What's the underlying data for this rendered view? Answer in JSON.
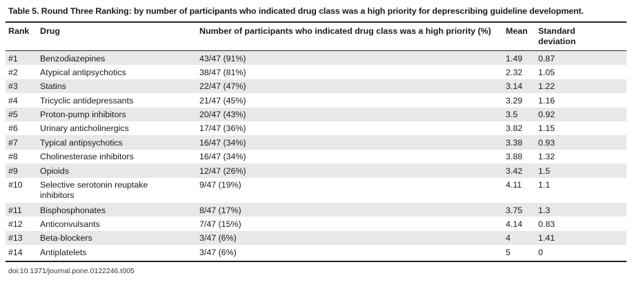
{
  "caption": "Table 5.  Round Three Ranking: by number of participants who indicated drug class was a high priority for deprescribing guideline development.",
  "headers": {
    "rank": "Rank",
    "drug": "Drug",
    "number": "Number of participants who indicated drug class was a high priority (%)",
    "mean": "Mean",
    "sd": "Standard deviation"
  },
  "rows": [
    {
      "rank": "#1",
      "drug": "Benzodiazepines",
      "number": "43/47 (91%)",
      "mean": "1.49",
      "sd": "0.87"
    },
    {
      "rank": "#2",
      "drug": "Atypical antipsychotics",
      "number": "38/47 (81%)",
      "mean": "2.32",
      "sd": "1.05"
    },
    {
      "rank": "#3",
      "drug": "Statins",
      "number": "22/47 (47%)",
      "mean": "3.14",
      "sd": "1.22"
    },
    {
      "rank": "#4",
      "drug": "Tricyclic antidepressants",
      "number": "21/47 (45%)",
      "mean": "3.29",
      "sd": "1.16"
    },
    {
      "rank": "#5",
      "drug": "Proton-pump inhibitors",
      "number": "20/47 (43%)",
      "mean": "3.5",
      "sd": "0.92"
    },
    {
      "rank": "#6",
      "drug": "Urinary anticholinergics",
      "number": "17/47 (36%)",
      "mean": "3.82",
      "sd": "1.15"
    },
    {
      "rank": "#7",
      "drug": "Typical antipsychotics",
      "number": "16/47 (34%)",
      "mean": "3.38",
      "sd": "0.93"
    },
    {
      "rank": "#8",
      "drug": "Cholinesterase inhibitors",
      "number": "16/47 (34%)",
      "mean": "3.88",
      "sd": "1.32"
    },
    {
      "rank": "#9",
      "drug": "Opioids",
      "number": "12/47 (26%)",
      "mean": "3.42",
      "sd": "1.5"
    },
    {
      "rank": "#10",
      "drug": "Selective serotonin reuptake inhibitors",
      "number": "9/47 (19%)",
      "mean": "4.11",
      "sd": "1.1"
    },
    {
      "rank": "#11",
      "drug": "Bisphosphonates",
      "number": "8/47 (17%)",
      "mean": "3.75",
      "sd": "1.3"
    },
    {
      "rank": "#12",
      "drug": "Anticonvulsants",
      "number": "7/47 (15%)",
      "mean": "4.14",
      "sd": "0.83"
    },
    {
      "rank": "#13",
      "drug": "Beta-blockers",
      "number": "3/47 (6%)",
      "mean": "4",
      "sd": "1.41"
    },
    {
      "rank": "#14",
      "drug": "Antiplatelets",
      "number": "3/47 (6%)",
      "mean": "5",
      "sd": "0"
    }
  ],
  "doi": "doi:10.1371/journal.pone.0122246.t005"
}
